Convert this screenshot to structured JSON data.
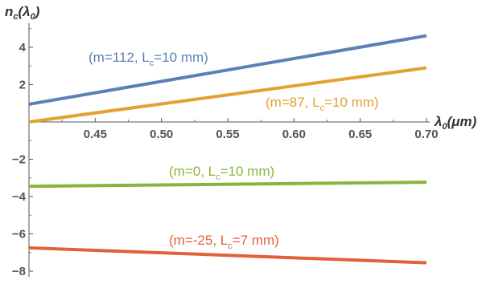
{
  "chart_data": {
    "type": "line",
    "ylabel": "n_c(λ_0)",
    "xlabel": "λ_0(μm)",
    "xlim": [
      0.4,
      0.7
    ],
    "ylim": [
      -8.3,
      5.3
    ],
    "xticks": [
      0.45,
      0.5,
      0.55,
      0.6,
      0.65,
      0.7
    ],
    "xtick_labels": [
      "0.45",
      "0.50",
      "0.55",
      "0.60",
      "0.65",
      "0.70"
    ],
    "yticks": [
      4,
      2,
      -2,
      -4,
      -6,
      -8
    ],
    "ytick_labels": [
      "4",
      "2",
      "−2",
      "−4",
      "−6",
      "−8"
    ],
    "grid": false,
    "series": [
      {
        "name": "(m=112, L_c=10 mm)",
        "label_parts": [
          "(m=112, L",
          "c",
          "=10 mm)"
        ],
        "color": "#5B80B5",
        "x": [
          0.4,
          0.7
        ],
        "y": [
          0.95,
          4.62
        ]
      },
      {
        "name": "(m=87, L_c=10 mm)",
        "label_parts": [
          "(m=87, L",
          "c",
          "=10 mm)"
        ],
        "color": "#E3A12F",
        "x": [
          0.4,
          0.7
        ],
        "y": [
          0.0,
          2.9
        ]
      },
      {
        "name": "(m=0, L_c=10 mm)",
        "label_parts": [
          "(m=0, L",
          "c",
          "=10 mm)"
        ],
        "color": "#8AB33B",
        "x": [
          0.4,
          0.7
        ],
        "y": [
          -3.45,
          -3.23
        ]
      },
      {
        "name": "(m=-25, L_c=7 mm)",
        "label_parts": [
          "(m=-25, L",
          "c",
          "=7 mm)"
        ],
        "color": "#E2603A",
        "x": [
          0.4,
          0.7
        ],
        "y": [
          -6.75,
          -7.55
        ]
      }
    ]
  }
}
